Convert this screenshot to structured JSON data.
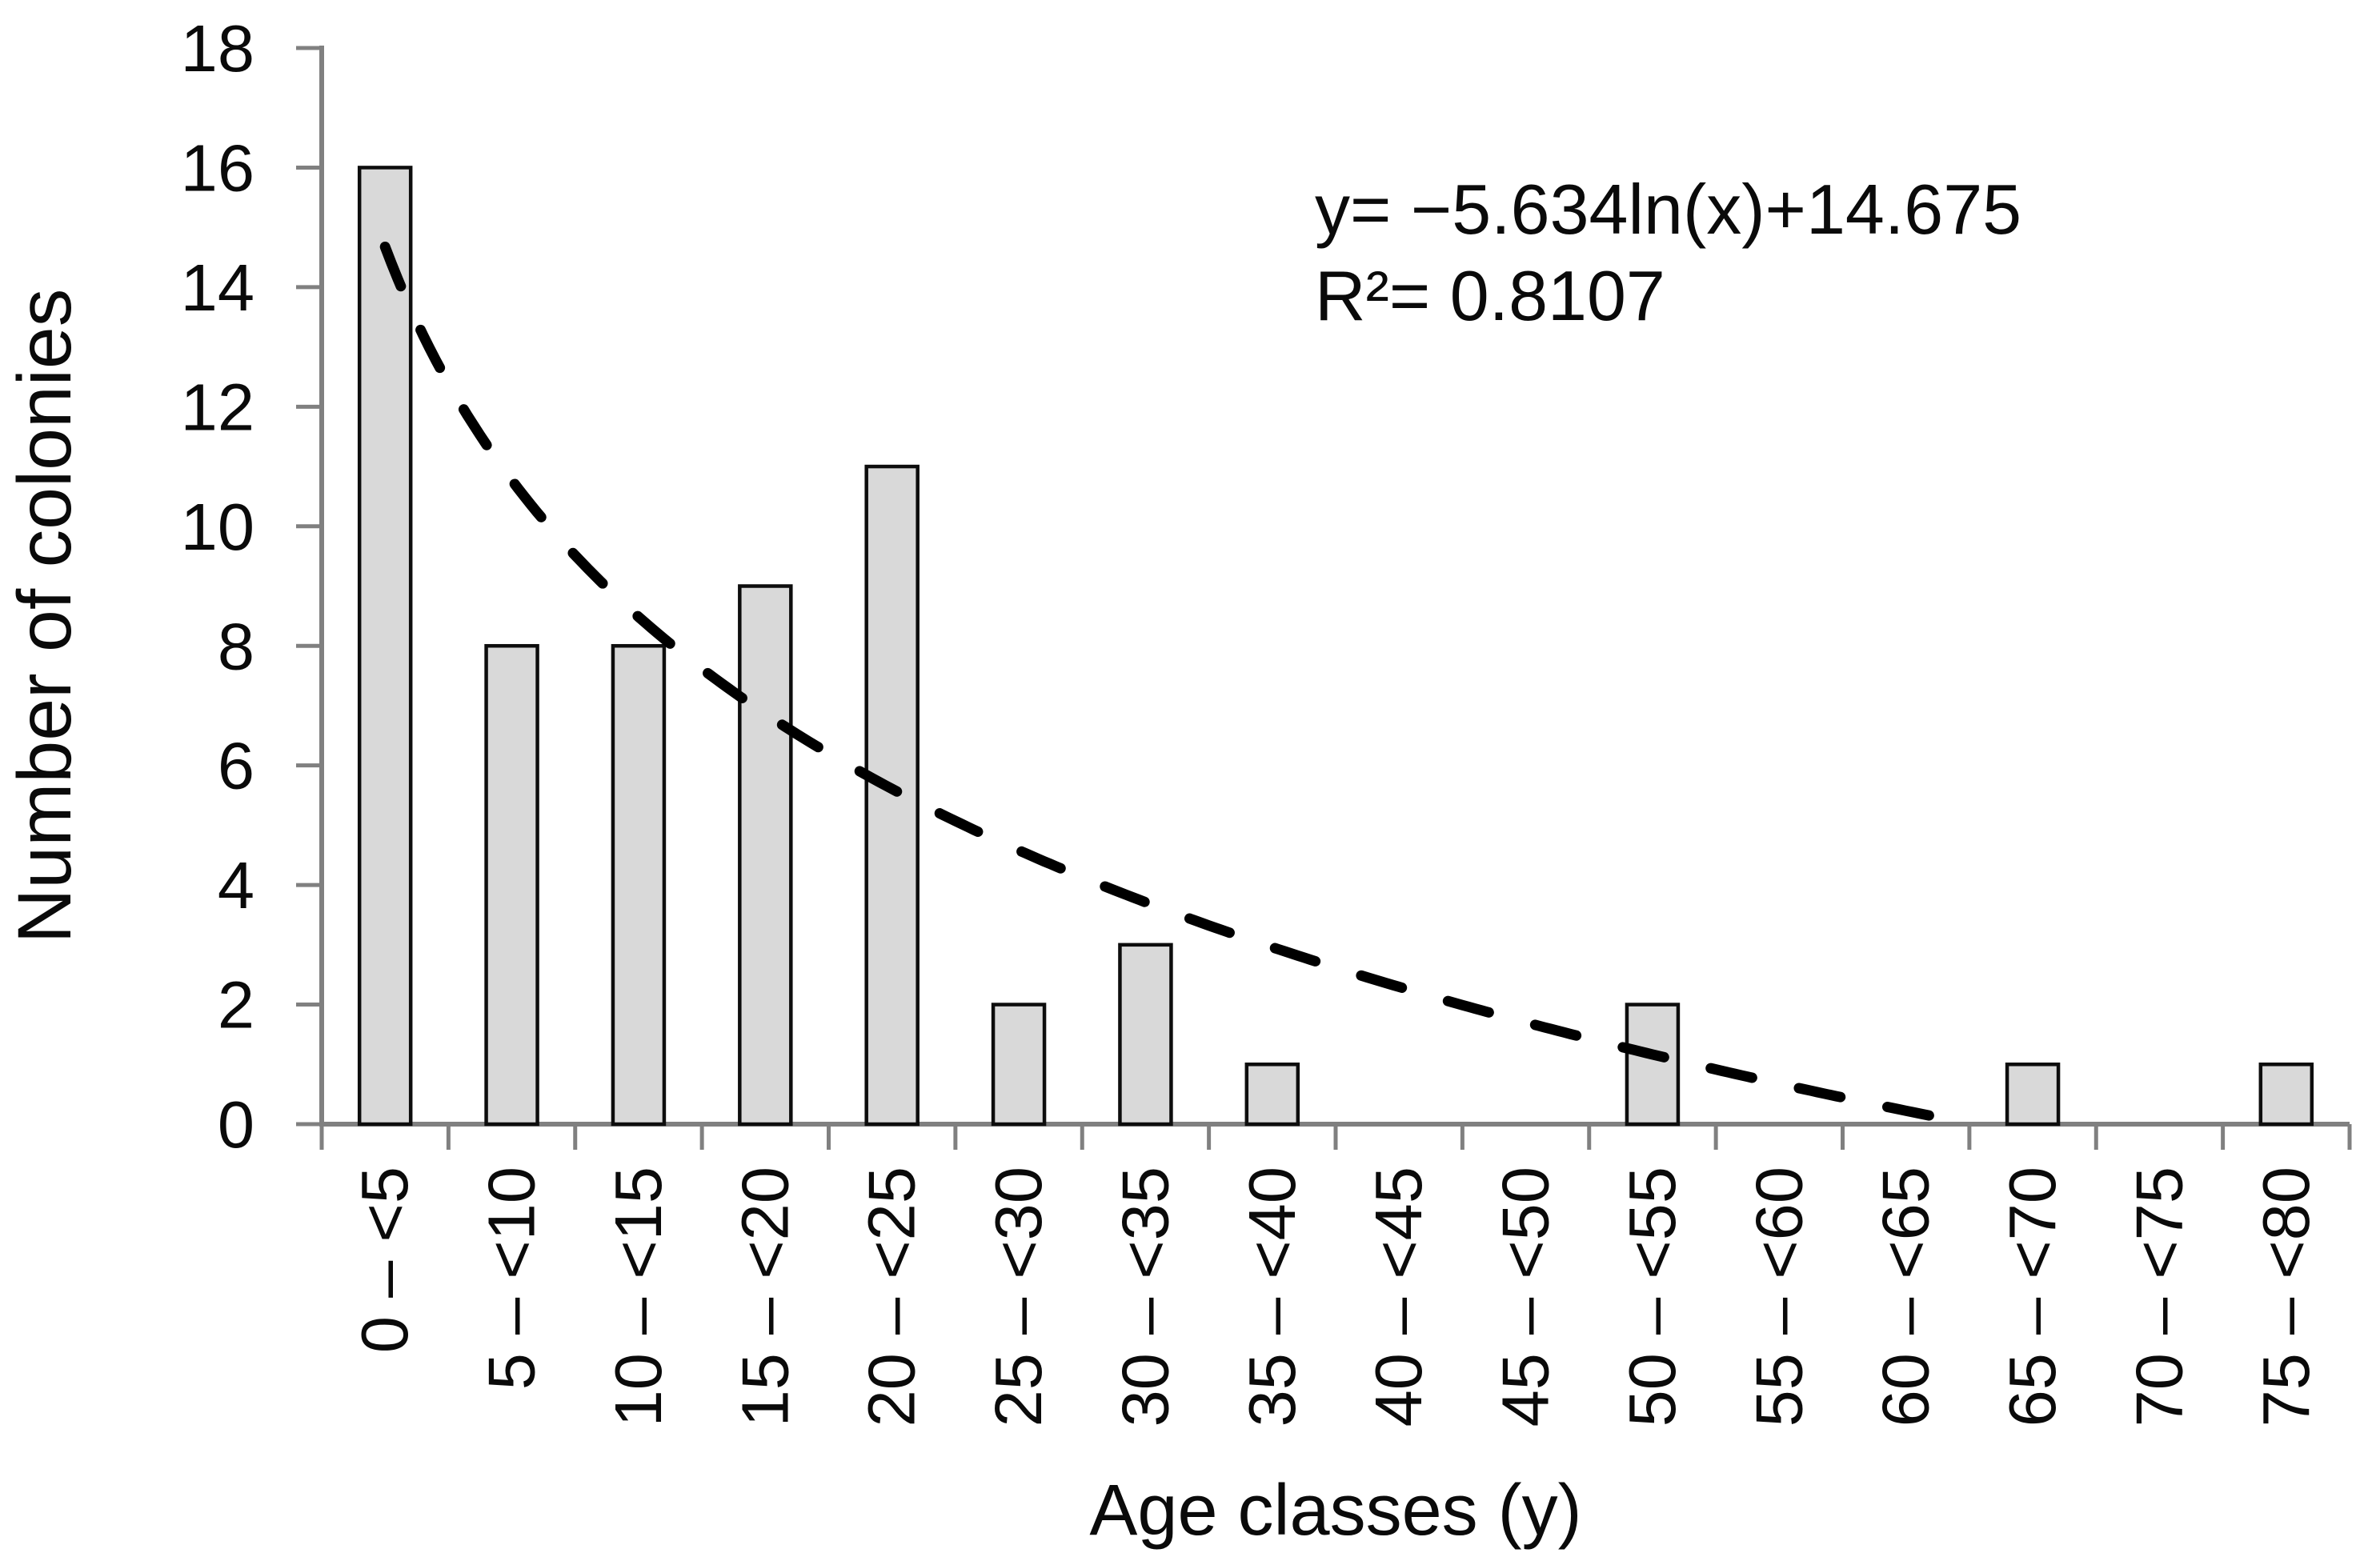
{
  "chart_data": {
    "type": "bar",
    "title": "",
    "xlabel": "Age classes (y)",
    "ylabel": "Number of colonies",
    "categories": [
      "0 – <5",
      "5 – <10",
      "10 – <15",
      "15 – <20",
      "20 – <25",
      "25 – <30",
      "30 – <35",
      "35 – <40",
      "40 – <45",
      "45 – <50",
      "50 – <55",
      "55 – <60",
      "60 – <65",
      "65 – <70",
      "70 – <75",
      "75 – <80"
    ],
    "values": [
      16,
      8,
      8,
      9,
      11,
      2,
      3,
      1,
      0,
      0,
      2,
      0,
      0,
      1,
      0,
      1
    ],
    "ylim": [
      0,
      18
    ],
    "ytick_step": 2,
    "grid": false,
    "legend": "none",
    "bar_fill_color": "#d9d9d9",
    "bar_border_color": "#0d0d0d",
    "axis_color": "#808080",
    "text_color": "#0a0a0a",
    "trendline": {
      "type": "logarithmic",
      "a": -5.634,
      "b": 14.675,
      "r2": 0.8107,
      "equation_text": "y= −5.634ln(x)+14.675",
      "r2_text": "R²= 0.8107",
      "style": "dashed",
      "color": "#000000"
    }
  }
}
